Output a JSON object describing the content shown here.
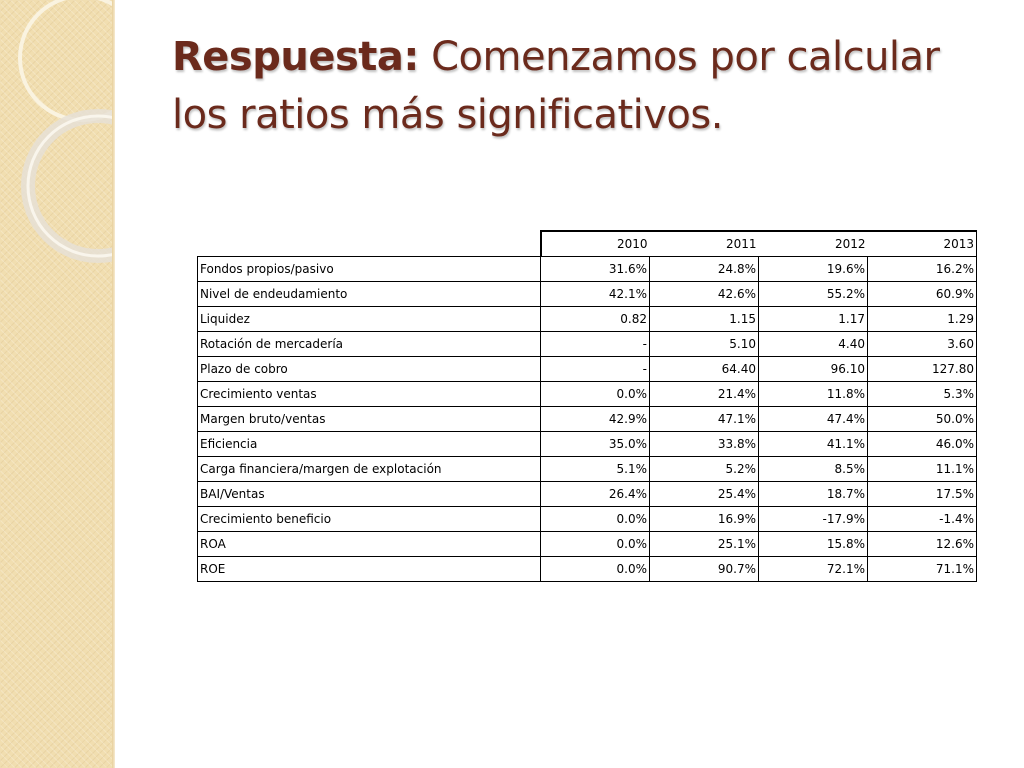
{
  "slide": {
    "title_bold": "Respuesta:",
    "title_rest": " Comenzamos por calcular los ratios más significativos."
  },
  "table": {
    "columns": [
      "2010",
      "2011",
      "2012",
      "2013"
    ],
    "rows": [
      {
        "label": "Fondos propios/pasivo",
        "values": [
          "31.6%",
          "24.8%",
          "19.6%",
          "16.2%"
        ]
      },
      {
        "label": "Nivel de endeudamiento",
        "values": [
          "42.1%",
          "42.6%",
          "55.2%",
          "60.9%"
        ]
      },
      {
        "label": "Liquidez",
        "values": [
          "0.82",
          "1.15",
          "1.17",
          "1.29"
        ]
      },
      {
        "label": "Rotación de mercadería",
        "values": [
          "-",
          "5.10",
          "4.40",
          "3.60"
        ]
      },
      {
        "label": "Plazo de cobro",
        "values": [
          "-",
          "64.40",
          "96.10",
          "127.80"
        ]
      },
      {
        "label": "Crecimiento ventas",
        "values": [
          "0.0%",
          "21.4%",
          "11.8%",
          "5.3%"
        ]
      },
      {
        "label": "Margen bruto/ventas",
        "values": [
          "42.9%",
          "47.1%",
          "47.4%",
          "50.0%"
        ]
      },
      {
        "label": "Eficiencia",
        "values": [
          "35.0%",
          "33.8%",
          "41.1%",
          "46.0%"
        ]
      },
      {
        "label": "Carga financiera/margen de explotación",
        "values": [
          "5.1%",
          "5.2%",
          "8.5%",
          "11.1%"
        ]
      },
      {
        "label": "BAI/Ventas",
        "values": [
          "26.4%",
          "25.4%",
          "18.7%",
          "17.5%"
        ]
      },
      {
        "label": "Crecimiento beneficio",
        "values": [
          "0.0%",
          "16.9%",
          "-17.9%",
          "-1.4%"
        ]
      },
      {
        "label": "ROA",
        "values": [
          "0.0%",
          "25.1%",
          "15.8%",
          "12.6%"
        ]
      },
      {
        "label": "ROE",
        "values": [
          "0.0%",
          "90.7%",
          "72.1%",
          "71.1%"
        ]
      }
    ]
  }
}
